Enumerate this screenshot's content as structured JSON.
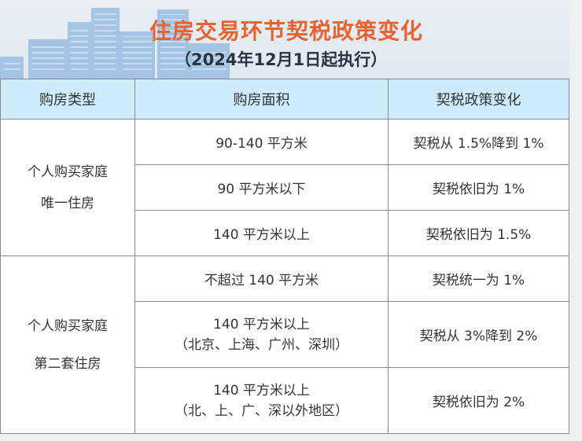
{
  "title": "住房交易环节契税政策变化",
  "subtitle": "（2024年12月1日起执行）",
  "colors": {
    "title": "#e8642e",
    "header_bg": "#cdebf8",
    "buildings": "#8fb8e0"
  },
  "table": {
    "headers": [
      "购房类型",
      "购房面积",
      "契税政策变化"
    ],
    "groups": [
      {
        "type_lines": [
          "个人购买家庭",
          "唯一住房"
        ],
        "rows": [
          {
            "area": [
              "90-140 平方米"
            ],
            "policy": "契税从 1.5%降到 1%"
          },
          {
            "area": [
              "90 平方米以下"
            ],
            "policy": "契税依旧为 1%"
          },
          {
            "area": [
              "140 平方米以上"
            ],
            "policy": "契税依旧为 1.5%"
          }
        ]
      },
      {
        "type_lines": [
          "个人购买家庭",
          "第二套住房"
        ],
        "rows": [
          {
            "area": [
              "不超过 140 平方米"
            ],
            "policy": "契税统一为 1%"
          },
          {
            "area": [
              "140 平方米以上",
              "（北京、上海、广州、深圳）"
            ],
            "policy": "契税从 3%降到 2%"
          },
          {
            "area": [
              "140 平方米以上",
              "（北、上、广、深以外地区）"
            ],
            "policy": "契税依旧为 2%"
          }
        ]
      }
    ]
  }
}
